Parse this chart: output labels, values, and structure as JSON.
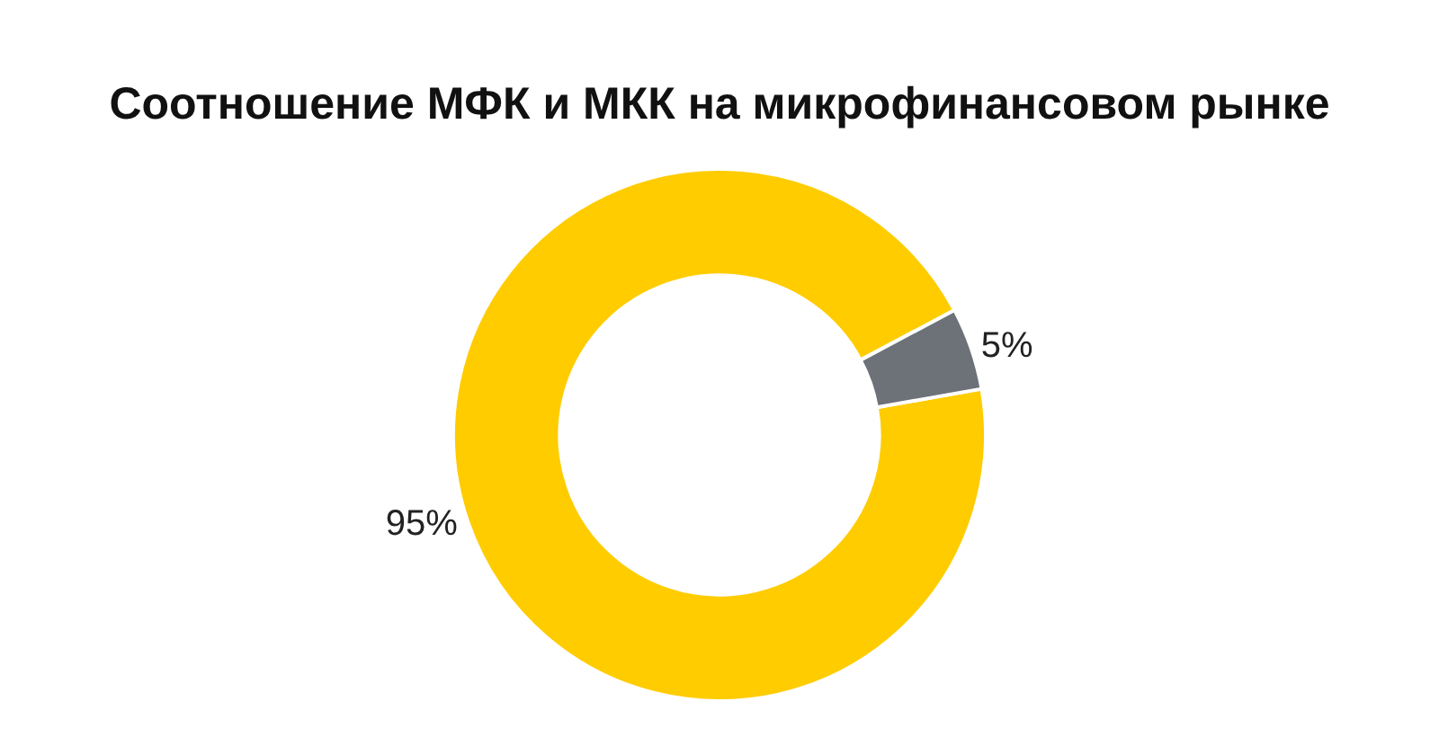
{
  "chart_data": {
    "type": "donut",
    "title": "Соотношение МФК и МКК на микрофинансовом рынке",
    "categories": [
      null,
      null
    ],
    "values": [
      95,
      5
    ],
    "colors": [
      "#ffcc00",
      "#6d7278"
    ],
    "value_labels": [
      "95%",
      "5%"
    ],
    "legend": false
  }
}
